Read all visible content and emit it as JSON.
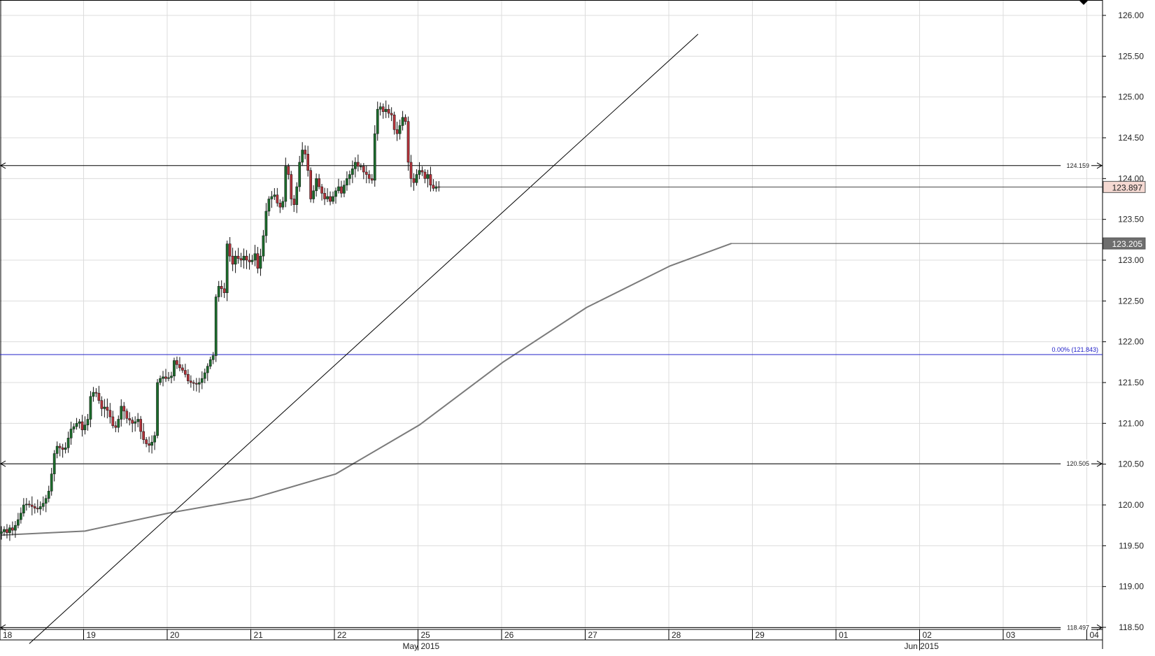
{
  "chart_data": {
    "type": "candlestick",
    "instrument_timeframe": "",
    "title": "",
    "y_axis": {
      "position": "right",
      "min": 118.3,
      "max": 126.2,
      "ticks": [
        126.0,
        125.5,
        125.0,
        124.5,
        124.0,
        123.5,
        123.0,
        122.5,
        122.0,
        121.5,
        121.0,
        120.5,
        120.0,
        119.5,
        119.0,
        118.5
      ],
      "tick_labels": [
        "126.00",
        "125.50",
        "125.00",
        "124.50",
        "124.00",
        "123.50",
        "123.00",
        "122.50",
        "122.00",
        "121.50",
        "121.00",
        "120.50",
        "120.00",
        "119.50",
        "119.00",
        "118.50"
      ]
    },
    "x_axis": {
      "day_labels": [
        "18",
        "19",
        "20",
        "21",
        "22",
        "25",
        "26",
        "27",
        "28",
        "29",
        "01",
        "02",
        "03",
        "04"
      ],
      "month_labels": [
        {
          "label": "May 2015",
          "day_index": 5
        },
        {
          "label": "Jun 2015",
          "day_index": 11
        }
      ],
      "bars_per_day": 30
    },
    "grid": true,
    "close_series": [
      119.67,
      119.7,
      119.66,
      119.72,
      119.69,
      119.75,
      119.82,
      119.9,
      120.0,
      120.01,
      120.0,
      119.98,
      119.96,
      119.95,
      119.98,
      120.02,
      120.08,
      120.17,
      120.38,
      120.63,
      120.72,
      120.7,
      120.68,
      120.7,
      120.82,
      120.93,
      120.96,
      121.0,
      121.02,
      120.92,
      120.98,
      121.05,
      121.33,
      121.38,
      121.37,
      121.28,
      121.18,
      121.2,
      121.16,
      121.08,
      120.97,
      120.95,
      121.05,
      121.21,
      121.15,
      121.06,
      121.04,
      121.0,
      121.02,
      121.05,
      120.9,
      120.8,
      120.75,
      120.73,
      120.77,
      120.85,
      121.5,
      121.55,
      121.57,
      121.55,
      121.56,
      121.58,
      121.77,
      121.72,
      121.68,
      121.65,
      121.6,
      121.52,
      121.5,
      121.49,
      121.48,
      121.5,
      121.55,
      121.62,
      121.7,
      121.78,
      121.83,
      122.55,
      122.68,
      122.65,
      122.6,
      123.2,
      123.05,
      122.95,
      123.05,
      123.02,
      123.0,
      123.05,
      123.0,
      122.98,
      123.0,
      123.08,
      122.9,
      123.05,
      123.3,
      123.6,
      123.75,
      123.78,
      123.8,
      123.7,
      123.65,
      123.72,
      124.15,
      124.05,
      123.75,
      123.68,
      123.9,
      124.2,
      124.35,
      124.3,
      124.1,
      123.75,
      123.85,
      124.0,
      123.9,
      123.82,
      123.75,
      123.78,
      123.72,
      123.78,
      123.85,
      123.9,
      123.82,
      123.92,
      124.0,
      124.05,
      124.12,
      124.2,
      124.15,
      124.15,
      124.08,
      124.05,
      124.0,
      123.98,
      124.55,
      124.85,
      124.88,
      124.82,
      124.85,
      124.8,
      124.78,
      124.6,
      124.55,
      124.65,
      124.75,
      124.7,
      124.2,
      124.0,
      123.95,
      124.05,
      124.1,
      124.08,
      124.0,
      124.05,
      123.92,
      123.88,
      123.9,
      123.897
    ],
    "horizontal_levels": [
      {
        "value": 124.159,
        "label": "124.159"
      },
      {
        "value": 120.505,
        "label": "120.505"
      },
      {
        "value": 118.497,
        "label": "118.497"
      }
    ],
    "fibonacci_level": {
      "value": 121.843,
      "label": "0.00% (121.843)"
    },
    "trendline": {
      "from": {
        "bar": 10,
        "value": 118.3
      },
      "to": {
        "bar": 250,
        "value": 125.77
      }
    },
    "moving_average": [
      {
        "bar": 0,
        "value": 119.63
      },
      {
        "bar": 30,
        "value": 119.68
      },
      {
        "bar": 60,
        "value": 119.9
      },
      {
        "bar": 90,
        "value": 120.08
      },
      {
        "bar": 120,
        "value": 120.38
      },
      {
        "bar": 150,
        "value": 120.98
      },
      {
        "bar": 180,
        "value": 121.75
      },
      {
        "bar": 210,
        "value": 122.42
      },
      {
        "bar": 240,
        "value": 122.93
      },
      {
        "bar": 262,
        "value": 123.205
      }
    ],
    "last_price_tag": {
      "value": 123.897,
      "label": "123.897"
    },
    "ma_price_tag": {
      "value": 123.205,
      "label": "123.205"
    }
  },
  "colors": {
    "up_candle": "#1b6b2b",
    "down_candle": "#b3323a",
    "grid": "#dcdcdc",
    "fib_line": "#2020c8",
    "moving_average": "#7a7a7a",
    "last_tag_bg": "#f5d9d2",
    "ma_tag_bg": "#6e6e6e"
  }
}
